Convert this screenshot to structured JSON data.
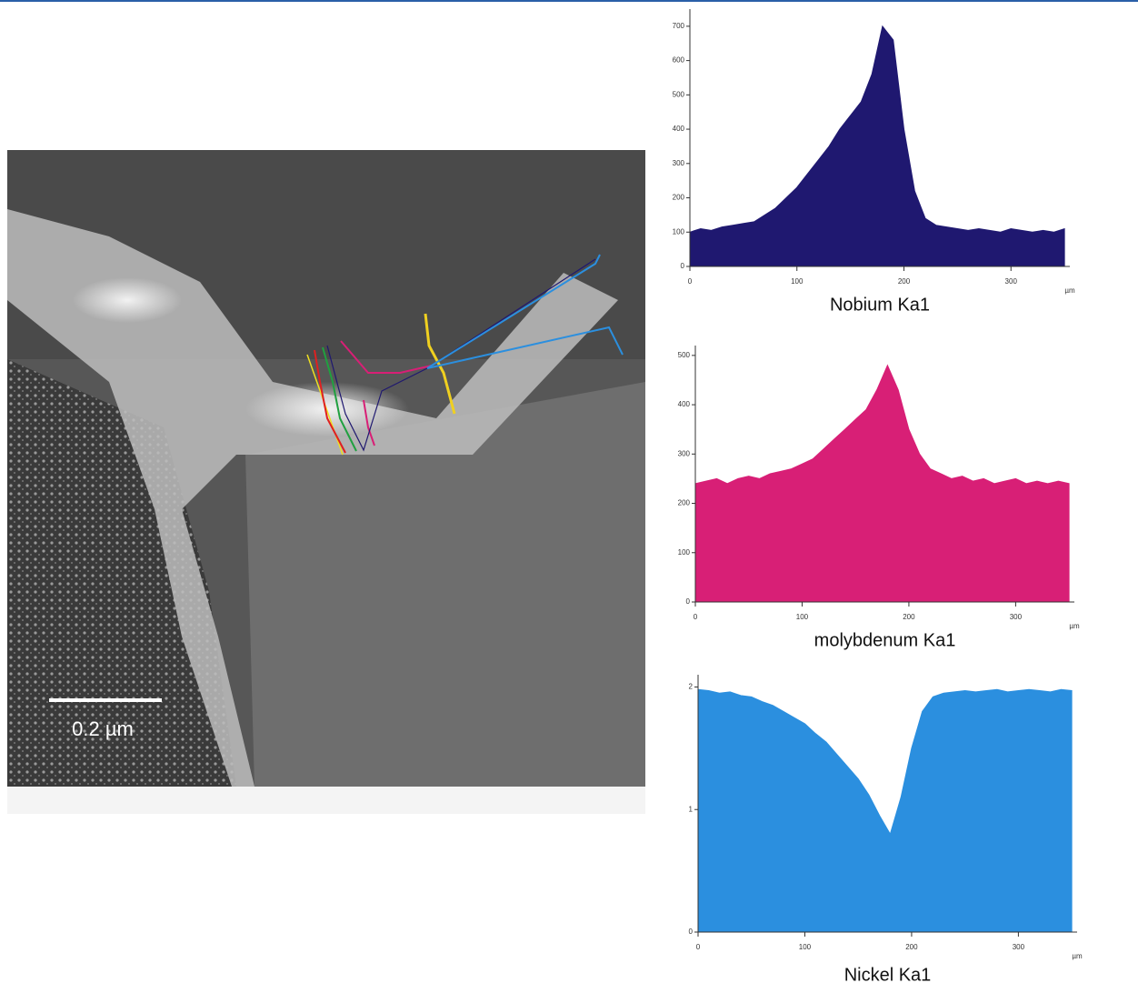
{
  "image": {
    "scale_label": "0.2 µm"
  },
  "chart_data": [
    {
      "type": "area",
      "title": "Nobium Ka1",
      "x_label": "µm",
      "color": "#1f1870",
      "x": [
        0,
        10,
        20,
        30,
        40,
        50,
        60,
        70,
        80,
        90,
        100,
        110,
        120,
        130,
        140,
        150,
        160,
        170,
        180,
        190,
        200,
        210,
        220,
        230,
        240,
        250,
        260,
        270,
        280,
        290,
        300,
        310,
        320,
        330,
        340,
        350
      ],
      "values": [
        100,
        110,
        105,
        115,
        120,
        125,
        130,
        150,
        170,
        200,
        230,
        270,
        310,
        350,
        400,
        440,
        480,
        560,
        700,
        660,
        400,
        220,
        140,
        120,
        115,
        110,
        105,
        110,
        105,
        100,
        110,
        105,
        100,
        105,
        100,
        110
      ],
      "xlim": [
        0,
        355
      ],
      "xticks": [
        0,
        100,
        200,
        300
      ],
      "ylim": [
        0,
        750
      ],
      "yticks": [
        0,
        100,
        200,
        300,
        400,
        500,
        600,
        700
      ]
    },
    {
      "type": "area",
      "title": "molybdenum Ka1",
      "x_label": "µm",
      "color": "#d81f76",
      "x": [
        0,
        10,
        20,
        30,
        40,
        50,
        60,
        70,
        80,
        90,
        100,
        110,
        120,
        130,
        140,
        150,
        160,
        170,
        180,
        190,
        200,
        210,
        220,
        230,
        240,
        250,
        260,
        270,
        280,
        290,
        300,
        310,
        320,
        330,
        340,
        350
      ],
      "values": [
        240,
        245,
        250,
        240,
        250,
        255,
        250,
        260,
        265,
        270,
        280,
        290,
        310,
        330,
        350,
        370,
        390,
        430,
        480,
        430,
        350,
        300,
        270,
        260,
        250,
        255,
        245,
        250,
        240,
        245,
        250,
        240,
        245,
        240,
        245,
        240
      ],
      "xlim": [
        0,
        355
      ],
      "xticks": [
        0,
        100,
        200,
        300
      ],
      "ylim": [
        0,
        520
      ],
      "yticks": [
        0,
        100,
        200,
        300,
        400,
        500
      ]
    },
    {
      "type": "area",
      "title": "Nickel Ka1",
      "x_label": "µm",
      "color": "#2b8fdf",
      "x": [
        0,
        10,
        20,
        30,
        40,
        50,
        60,
        70,
        80,
        90,
        100,
        110,
        120,
        130,
        140,
        150,
        160,
        170,
        180,
        190,
        200,
        210,
        220,
        230,
        240,
        250,
        260,
        270,
        280,
        290,
        300,
        310,
        320,
        330,
        340,
        350
      ],
      "values": [
        1.98,
        1.97,
        1.95,
        1.96,
        1.93,
        1.92,
        1.88,
        1.85,
        1.8,
        1.75,
        1.7,
        1.62,
        1.55,
        1.45,
        1.35,
        1.25,
        1.12,
        0.95,
        0.8,
        1.1,
        1.5,
        1.8,
        1.92,
        1.95,
        1.96,
        1.97,
        1.96,
        1.97,
        1.98,
        1.96,
        1.97,
        1.98,
        1.97,
        1.96,
        1.98,
        1.97
      ],
      "xlim": [
        0,
        355
      ],
      "xticks": [
        0,
        100,
        200,
        300
      ],
      "ylim": [
        0,
        2.1
      ],
      "yticks": [
        0,
        1,
        2
      ]
    }
  ]
}
